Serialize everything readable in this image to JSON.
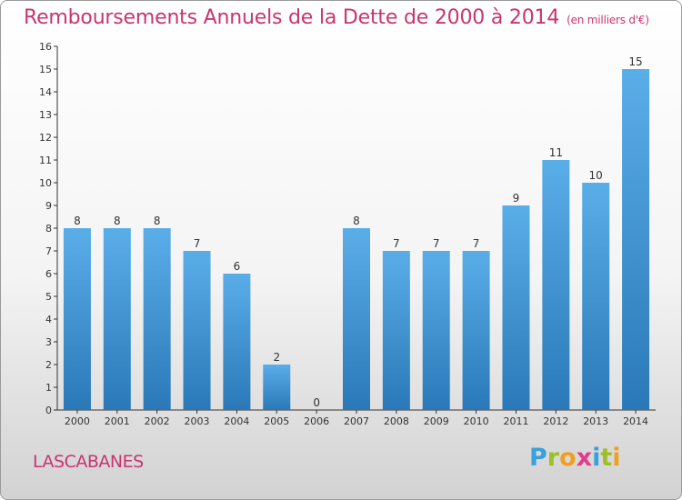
{
  "header": {
    "title": "Remboursements Annuels de la Dette de 2000 à 2014",
    "unit_note": "(en milliers d'€)"
  },
  "footer": {
    "commune": "LASCABANES",
    "logo_text": "Proxiti"
  },
  "chart_data": {
    "type": "bar",
    "title": "Remboursements Annuels de la Dette de 2000 à 2014",
    "subtitle": "(en milliers d'€)",
    "xlabel": "",
    "ylabel": "",
    "ylim": [
      0,
      16
    ],
    "yticks": [
      0,
      1,
      2,
      3,
      4,
      5,
      6,
      7,
      8,
      9,
      10,
      11,
      12,
      13,
      14,
      15,
      16
    ],
    "grid": false,
    "categories": [
      "2000",
      "2001",
      "2002",
      "2003",
      "2004",
      "2005",
      "2006",
      "2007",
      "2008",
      "2009",
      "2010",
      "2011",
      "2012",
      "2013",
      "2014"
    ],
    "values": [
      8,
      8,
      8,
      7,
      6,
      2,
      0,
      8,
      7,
      7,
      7,
      9,
      11,
      10,
      15
    ],
    "colors": {
      "bar_top": "#5aaee8",
      "bar_bottom": "#2a78b8",
      "label": "#333333",
      "axis": "#333333",
      "title": "#c8356f"
    }
  }
}
